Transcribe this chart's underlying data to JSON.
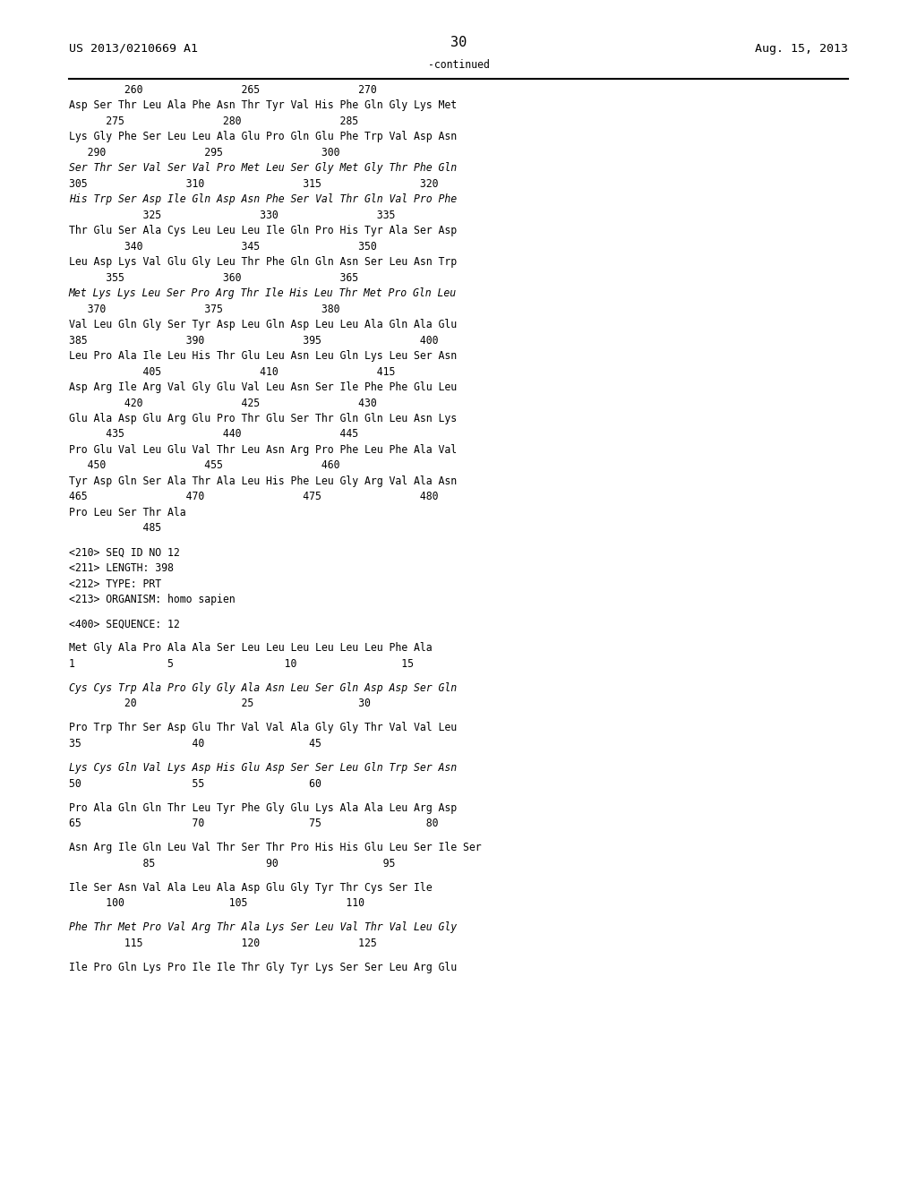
{
  "header_left": "US 2013/0210669 A1",
  "header_right": "Aug. 15, 2013",
  "page_number": "30",
  "continued_label": "-continued",
  "background_color": "#ffffff",
  "text_color": "#000000",
  "lines": [
    {
      "text": "         260                265                270",
      "italic": false
    },
    {
      "text": "Asp Ser Thr Leu Ala Phe Asn Thr Tyr Val His Phe Gln Gly Lys Met",
      "italic": false
    },
    {
      "text": "      275                280                285",
      "italic": false
    },
    {
      "text": "Lys Gly Phe Ser Leu Leu Ala Glu Pro Gln Glu Phe Trp Val Asp Asn",
      "italic": false
    },
    {
      "text": "   290                295                300",
      "italic": false
    },
    {
      "text": "Ser Thr Ser Val Ser Val Pro Met Leu Ser Gly Met Gly Thr Phe Gln",
      "italic": true
    },
    {
      "text": "305                310                315                320",
      "italic": false
    },
    {
      "text": "His Trp Ser Asp Ile Gln Asp Asn Phe Ser Val Thr Gln Val Pro Phe",
      "italic": true
    },
    {
      "text": "            325                330                335",
      "italic": false
    },
    {
      "text": "Thr Glu Ser Ala Cys Leu Leu Leu Ile Gln Pro His Tyr Ala Ser Asp",
      "italic": false
    },
    {
      "text": "         340                345                350",
      "italic": false
    },
    {
      "text": "Leu Asp Lys Val Glu Gly Leu Thr Phe Gln Gln Asn Ser Leu Asn Trp",
      "italic": false
    },
    {
      "text": "      355                360                365",
      "italic": false
    },
    {
      "text": "Met Lys Lys Leu Ser Pro Arg Thr Ile His Leu Thr Met Pro Gln Leu",
      "italic": true
    },
    {
      "text": "   370                375                380",
      "italic": false
    },
    {
      "text": "Val Leu Gln Gly Ser Tyr Asp Leu Gln Asp Leu Leu Ala Gln Ala Glu",
      "italic": false
    },
    {
      "text": "385                390                395                400",
      "italic": false
    },
    {
      "text": "Leu Pro Ala Ile Leu His Thr Glu Leu Asn Leu Gln Lys Leu Ser Asn",
      "italic": false
    },
    {
      "text": "            405                410                415",
      "italic": false
    },
    {
      "text": "Asp Arg Ile Arg Val Gly Glu Val Leu Asn Ser Ile Phe Phe Glu Leu",
      "italic": false
    },
    {
      "text": "         420                425                430",
      "italic": false
    },
    {
      "text": "Glu Ala Asp Glu Arg Glu Pro Thr Glu Ser Thr Gln Gln Leu Asn Lys",
      "italic": false
    },
    {
      "text": "      435                440                445",
      "italic": false
    },
    {
      "text": "Pro Glu Val Leu Glu Val Thr Leu Asn Arg Pro Phe Leu Phe Ala Val",
      "italic": false
    },
    {
      "text": "   450                455                460",
      "italic": false
    },
    {
      "text": "Tyr Asp Gln Ser Ala Thr Ala Leu His Phe Leu Gly Arg Val Ala Asn",
      "italic": false
    },
    {
      "text": "465                470                475                480",
      "italic": false
    },
    {
      "text": "Pro Leu Ser Thr Ala",
      "italic": false
    },
    {
      "text": "            485",
      "italic": false
    },
    {
      "text": "",
      "italic": false
    },
    {
      "text": "<210> SEQ ID NO 12",
      "italic": false
    },
    {
      "text": "<211> LENGTH: 398",
      "italic": false
    },
    {
      "text": "<212> TYPE: PRT",
      "italic": false
    },
    {
      "text": "<213> ORGANISM: homo sapien",
      "italic": false
    },
    {
      "text": "",
      "italic": false
    },
    {
      "text": "<400> SEQUENCE: 12",
      "italic": false
    },
    {
      "text": "",
      "italic": false
    },
    {
      "text": "Met Gly Ala Pro Ala Ala Ser Leu Leu Leu Leu Leu Leu Phe Ala",
      "italic": false
    },
    {
      "text": "1               5                  10                 15",
      "italic": false
    },
    {
      "text": "",
      "italic": false
    },
    {
      "text": "Cys Cys Trp Ala Pro Gly Gly Ala Asn Leu Ser Gln Asp Asp Ser Gln",
      "italic": true
    },
    {
      "text": "         20                 25                 30",
      "italic": false
    },
    {
      "text": "",
      "italic": false
    },
    {
      "text": "Pro Trp Thr Ser Asp Glu Thr Val Val Ala Gly Gly Thr Val Val Leu",
      "italic": false
    },
    {
      "text": "35                  40                 45",
      "italic": false
    },
    {
      "text": "",
      "italic": false
    },
    {
      "text": "Lys Cys Gln Val Lys Asp His Glu Asp Ser Ser Leu Gln Trp Ser Asn",
      "italic": true
    },
    {
      "text": "50                  55                 60",
      "italic": false
    },
    {
      "text": "",
      "italic": false
    },
    {
      "text": "Pro Ala Gln Gln Thr Leu Tyr Phe Gly Glu Lys Ala Ala Leu Arg Asp",
      "italic": false
    },
    {
      "text": "65                  70                 75                 80",
      "italic": false
    },
    {
      "text": "",
      "italic": false
    },
    {
      "text": "Asn Arg Ile Gln Leu Val Thr Ser Thr Pro His His Glu Leu Ser Ile Ser",
      "italic": false
    },
    {
      "text": "            85                  90                 95",
      "italic": false
    },
    {
      "text": "",
      "italic": false
    },
    {
      "text": "Ile Ser Asn Val Ala Leu Ala Asp Glu Gly Tyr Thr Cys Ser Ile",
      "italic": false
    },
    {
      "text": "      100                 105                110",
      "italic": false
    },
    {
      "text": "",
      "italic": false
    },
    {
      "text": "Phe Thr Met Pro Val Arg Thr Ala Lys Ser Leu Val Thr Val Leu Gly",
      "italic": true
    },
    {
      "text": "         115                120                125",
      "italic": false
    },
    {
      "text": "",
      "italic": false
    },
    {
      "text": "Ile Pro Gln Lys Pro Ile Ile Thr Gly Tyr Lys Ser Ser Leu Arg Glu",
      "italic": false
    }
  ]
}
